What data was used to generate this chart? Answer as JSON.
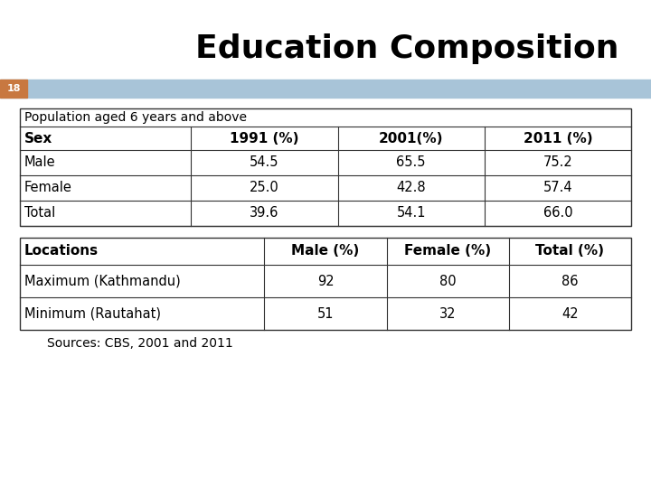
{
  "title": "Education Composition",
  "slide_number": "18",
  "header_bar_color": "#a8c4d8",
  "slide_number_bg": "#c87840",
  "background_color": "#ffffff",
  "table1_title": "Population aged 6 years and above",
  "table1_headers": [
    "Sex",
    "1991 (%)",
    "2001(%)",
    "2011 (%)"
  ],
  "table1_rows": [
    [
      "Male",
      "54.5",
      "65.5",
      "75.2"
    ],
    [
      "Female",
      "25.0",
      "42.8",
      "57.4"
    ],
    [
      "Total",
      "39.6",
      "54.1",
      "66.0"
    ]
  ],
  "table2_headers": [
    "Locations",
    "Male (%)",
    "Female (%)",
    "Total (%)"
  ],
  "table2_rows": [
    [
      "Maximum (Kathmandu)",
      "92",
      "80",
      "86"
    ],
    [
      "Minimum (Rautahat)",
      "51",
      "32",
      "42"
    ]
  ],
  "source_text": "Sources: CBS, 2001 and 2011",
  "title_fontsize": 26,
  "table_fontsize": 10.5,
  "header_fontsize": 11,
  "title_color": "#000000",
  "text_color": "#000000"
}
